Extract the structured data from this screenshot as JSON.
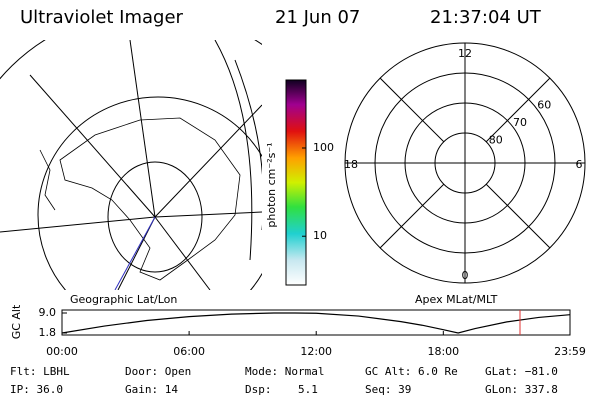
{
  "header": {
    "title": "Ultraviolet Imager",
    "date": "21 Jun 07",
    "time": "21:37:04 UT"
  },
  "colorbar": {
    "label": "photon cm⁻²s⁻¹",
    "log": true,
    "clim": [
      2.8,
      590
    ],
    "ticks": [
      10,
      100
    ]
  },
  "polar": {
    "rlim": [
      90,
      50
    ],
    "lat_ticks": [
      80,
      70,
      60
    ],
    "hour_ticks": [
      {
        "value": 12,
        "label": "12"
      },
      {
        "value": 6,
        "label": "6"
      },
      {
        "value": 18,
        "label": "18"
      },
      {
        "value": 0,
        "label": "0"
      }
    ]
  },
  "altitude_plot": {
    "type": "line",
    "y_label": "GC Alt",
    "left_label": "Geographic Lat/Lon",
    "right_label": "Apex MLat/MLT",
    "x": [
      0,
      2,
      4,
      6,
      8,
      10,
      11,
      12,
      14,
      16,
      17,
      18,
      18.7,
      19.5,
      21,
      22.5,
      23.98
    ],
    "values": [
      1.8,
      4.3,
      6.3,
      7.7,
      8.6,
      9.0,
      9.0,
      8.9,
      7.9,
      5.9,
      4.6,
      3.0,
      1.8,
      3.4,
      5.8,
      7.4,
      8.4
    ],
    "xlim": [
      0,
      23.98
    ],
    "ylim": [
      1.8,
      9.0
    ],
    "yticks": [
      {
        "value": 9.0,
        "label": "9.0"
      },
      {
        "value": 1.8,
        "label": "1.8"
      }
    ],
    "xticks": [
      {
        "value": 0,
        "label": "00:00"
      },
      {
        "value": 6,
        "label": "06:00"
      },
      {
        "value": 12,
        "label": "12:00"
      },
      {
        "value": 18,
        "label": "18:00"
      },
      {
        "value": 23.98,
        "label": "23:59"
      }
    ],
    "current_time": 21.62,
    "current_color": "#e03030"
  },
  "status": [
    [
      "Flt: LBHL",
      "IP: 36.0"
    ],
    [
      "Door: Open",
      "Gain: 14"
    ],
    [
      "Mode: Normal",
      "Dsp:    5.1"
    ],
    [
      "GC Alt: 6.0 Re",
      "Seq: 39"
    ],
    [
      "GLat: −81.0",
      "GLon: 337.8"
    ]
  ]
}
